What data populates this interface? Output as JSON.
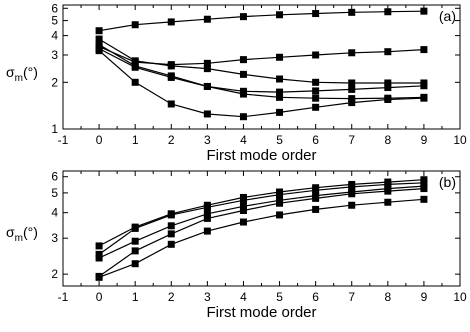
{
  "chart_data": [
    {
      "type": "line",
      "panel_label": "(a)",
      "ylabel": {
        "main": "σ",
        "sub": "m",
        "unit": "(°)"
      },
      "xlabel": "First mode order",
      "xlim": [
        -1,
        10
      ],
      "ylim": [
        1,
        6.3
      ],
      "yscale": "log",
      "x_ticks": [
        "-1",
        "0",
        "1",
        "2",
        "3",
        "4",
        "5",
        "6",
        "7",
        "8",
        "9",
        "10"
      ],
      "y_ticks": [
        "1",
        "2",
        "3",
        "4",
        "5",
        "6"
      ],
      "y_tick_values": [
        1,
        2,
        3,
        4,
        5,
        6
      ],
      "grid": false,
      "x": [
        0,
        1,
        2,
        3,
        4,
        5,
        6,
        7,
        8,
        9
      ],
      "series": [
        {
          "values": [
            4.3,
            4.7,
            4.9,
            5.1,
            5.3,
            5.45,
            5.55,
            5.65,
            5.7,
            5.75
          ]
        },
        {
          "values": [
            3.4,
            2.7,
            2.6,
            2.65,
            2.8,
            2.9,
            3.0,
            3.1,
            3.15,
            3.25
          ]
        },
        {
          "values": [
            3.8,
            2.75,
            2.55,
            2.45,
            2.25,
            2.1,
            2.0,
            1.98,
            1.98,
            1.98
          ]
        },
        {
          "values": [
            3.5,
            2.55,
            2.2,
            1.88,
            1.75,
            1.73,
            1.76,
            1.8,
            1.85,
            1.9
          ]
        },
        {
          "values": [
            3.3,
            2.5,
            2.15,
            1.88,
            1.68,
            1.6,
            1.58,
            1.57,
            1.58,
            1.6
          ]
        },
        {
          "values": [
            3.2,
            2.0,
            1.45,
            1.25,
            1.2,
            1.28,
            1.38,
            1.48,
            1.55,
            1.58
          ]
        }
      ]
    },
    {
      "type": "line",
      "panel_label": "(b)",
      "ylabel": {
        "main": "σ",
        "sub": "m",
        "unit": "(°)"
      },
      "xlabel": "First mode order",
      "xlim": [
        -1,
        10
      ],
      "ylim": [
        1.75,
        6.4
      ],
      "yscale": "log",
      "x_ticks": [
        "-1",
        "0",
        "1",
        "2",
        "3",
        "4",
        "5",
        "6",
        "7",
        "8",
        "9",
        "10"
      ],
      "y_ticks": [
        "2",
        "3",
        "4",
        "5",
        "6"
      ],
      "y_tick_values": [
        2,
        3,
        4,
        5,
        6
      ],
      "grid": false,
      "x": [
        0,
        1,
        2,
        3,
        4,
        5,
        6,
        7,
        8,
        9
      ],
      "series": [
        {
          "values": [
            2.75,
            3.4,
            3.95,
            4.35,
            4.75,
            5.05,
            5.3,
            5.5,
            5.65,
            5.8
          ]
        },
        {
          "values": [
            2.5,
            3.35,
            3.9,
            4.25,
            4.6,
            4.9,
            5.15,
            5.35,
            5.5,
            5.6
          ]
        },
        {
          "values": [
            2.4,
            2.9,
            3.45,
            3.95,
            4.3,
            4.6,
            4.85,
            5.05,
            5.25,
            5.4
          ]
        },
        {
          "values": [
            1.95,
            2.6,
            3.15,
            3.75,
            4.1,
            4.45,
            4.7,
            4.95,
            5.1,
            5.25
          ]
        },
        {
          "values": [
            1.93,
            2.25,
            2.8,
            3.25,
            3.6,
            3.9,
            4.15,
            4.35,
            4.5,
            4.65
          ]
        }
      ]
    }
  ]
}
